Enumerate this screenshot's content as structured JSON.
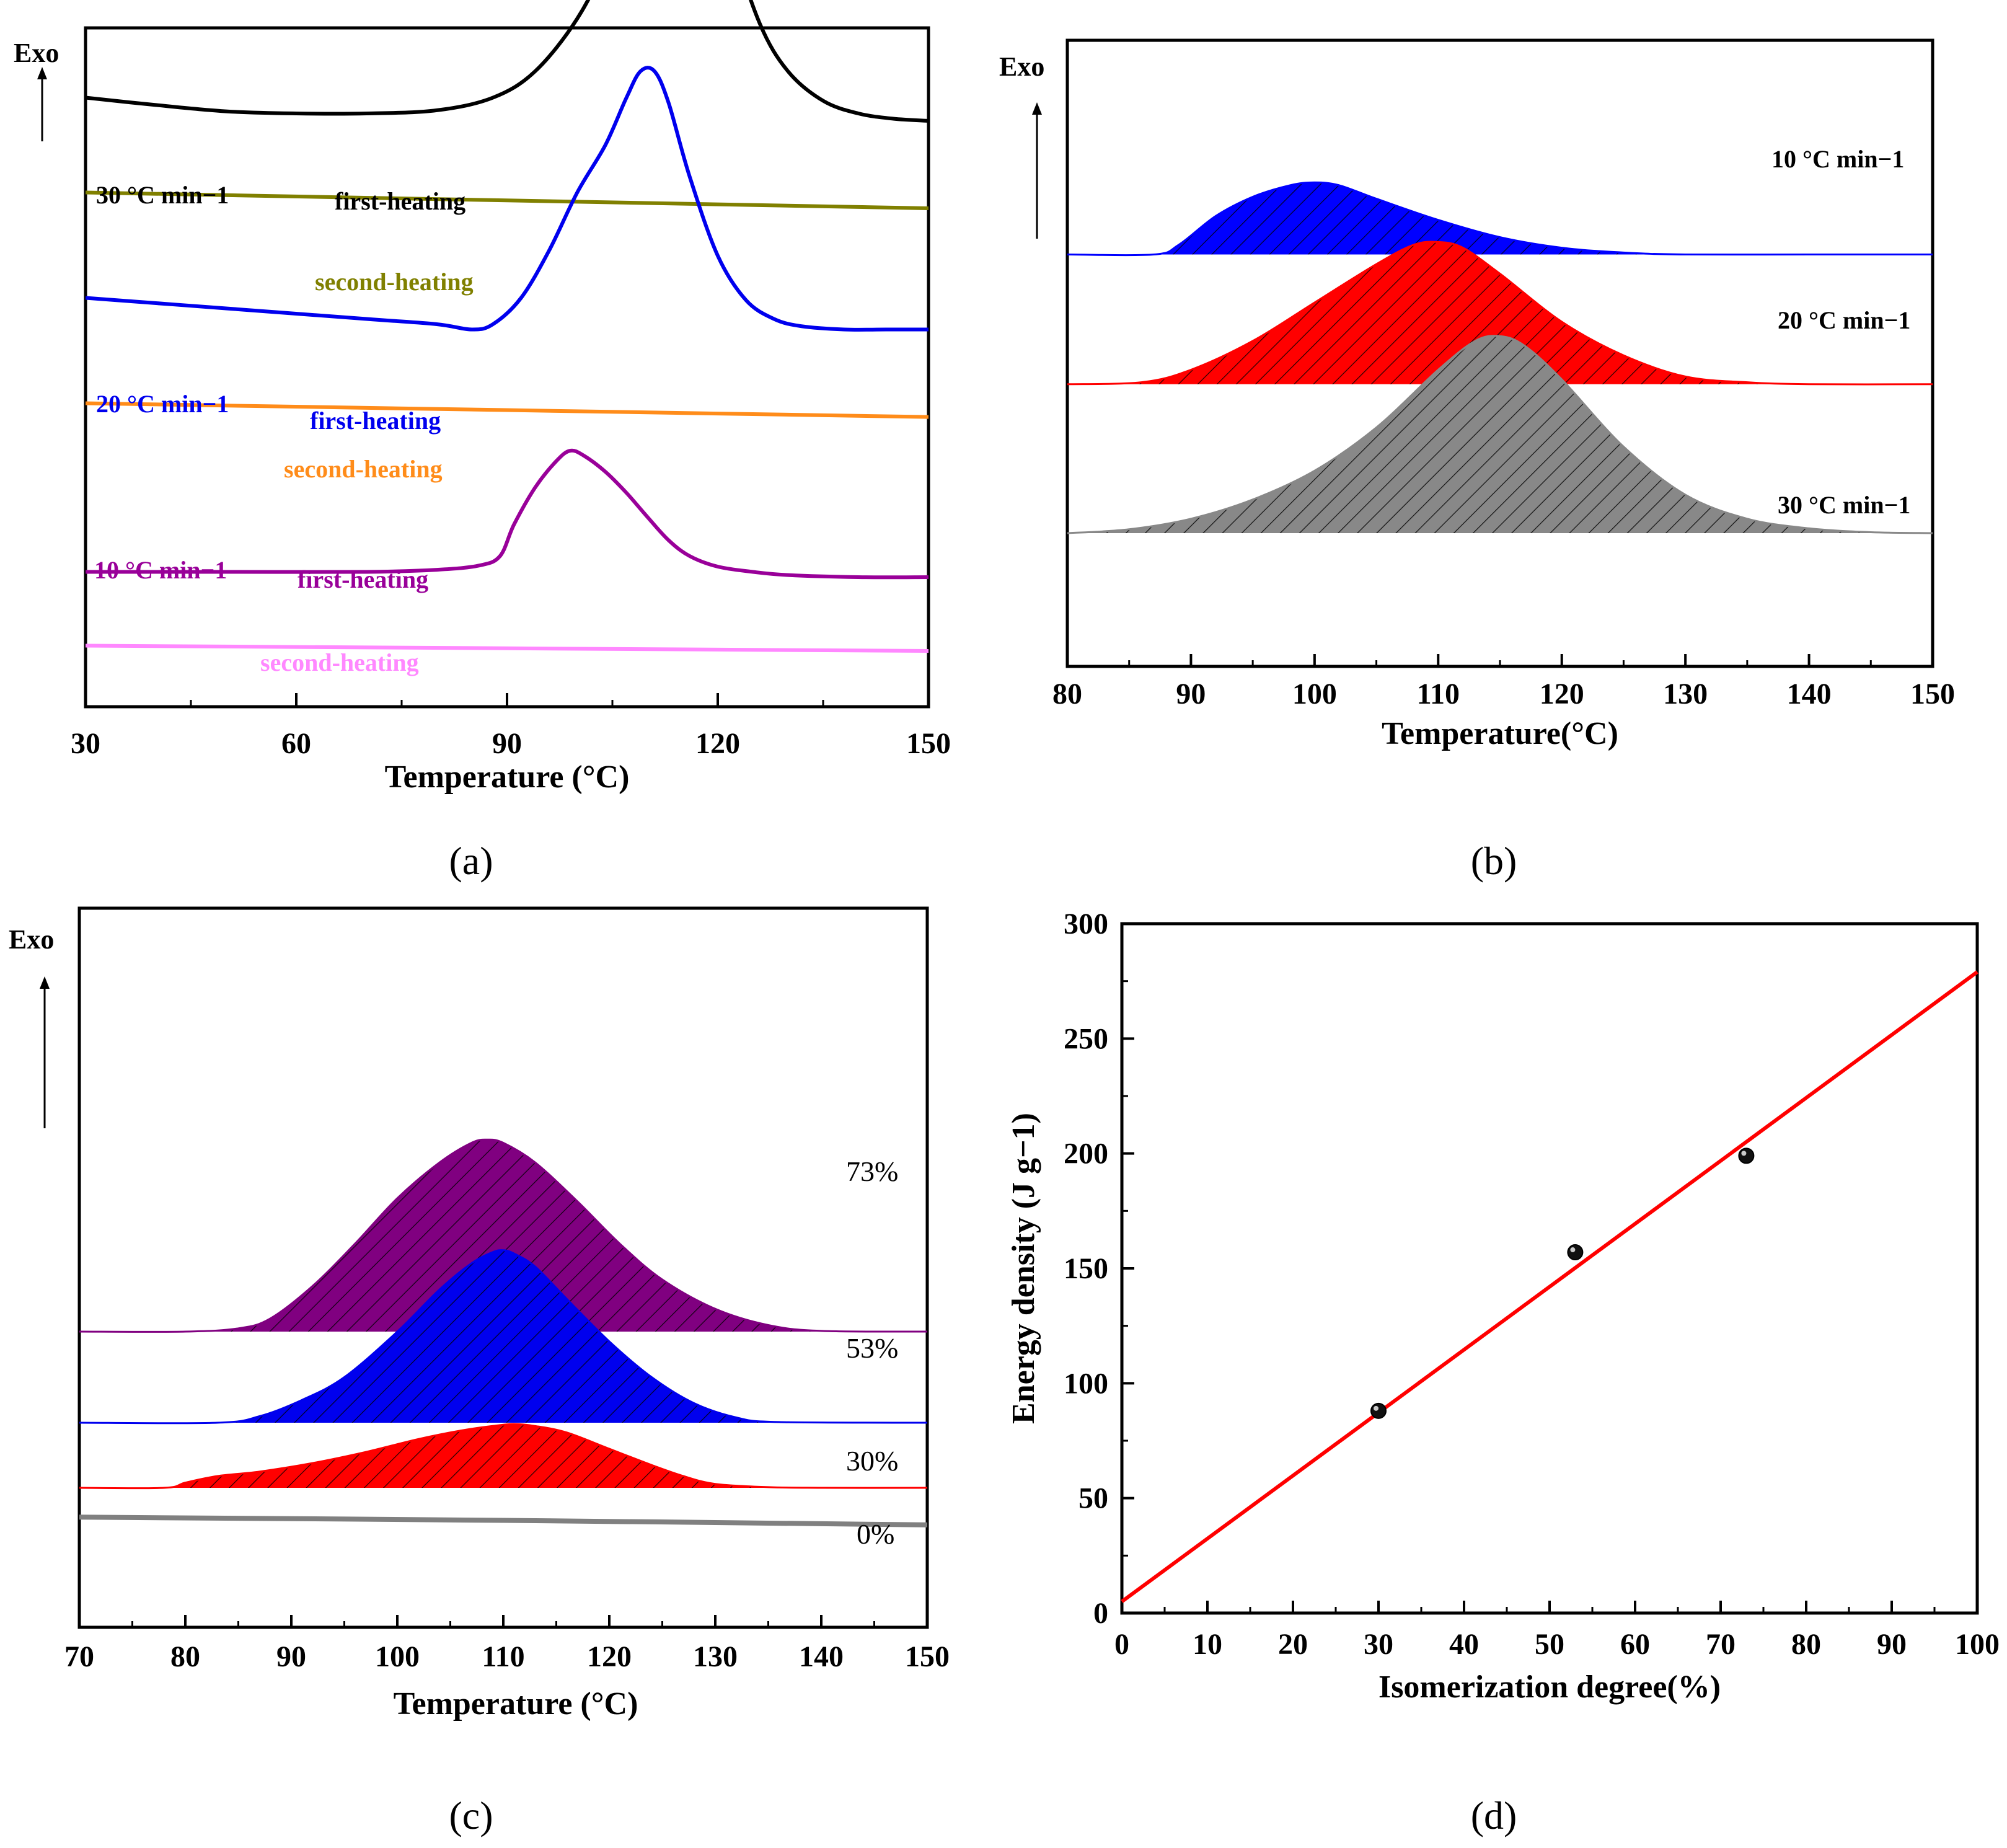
{
  "chart_data": [
    {
      "panel": "(a)",
      "type": "line",
      "xlabel": "Temperature (°C)",
      "ylabel": "Exo",
      "xlim": [
        30,
        150
      ],
      "xticks": [
        "30",
        "60",
        "90",
        "120",
        "150"
      ],
      "series": [
        {
          "name": "first-heating",
          "rate_label": "30 °C min−1",
          "color": "#000000",
          "offset": 5.0,
          "x": [
            30,
            40,
            50,
            60,
            70,
            80,
            88,
            94,
            100,
            104,
            108,
            110,
            112,
            114,
            116,
            118,
            120,
            122,
            126,
            130,
            135,
            140,
            145,
            150
          ],
          "y": [
            0.25,
            0.18,
            0.12,
            0.1,
            0.1,
            0.13,
            0.25,
            0.5,
            1.0,
            1.55,
            2.4,
            2.9,
            3.4,
            3.7,
            3.55,
            3.05,
            2.4,
            1.75,
            0.95,
            0.5,
            0.22,
            0.1,
            0.05,
            0.03
          ]
        },
        {
          "name": "second-heating",
          "color": "#808000",
          "offset": 4.35,
          "x": [
            30,
            150
          ],
          "y": [
            0.0,
            -0.15
          ]
        },
        {
          "name": "first-heating",
          "rate_label": "20 °C min−1",
          "color": "#0000ee",
          "offset": 3.05,
          "x": [
            30,
            50,
            70,
            80,
            85,
            88,
            92,
            96,
            100,
            104,
            107,
            109,
            111,
            113,
            116,
            120,
            124,
            128,
            132,
            138,
            144,
            150
          ],
          "y": [
            0.3,
            0.2,
            0.1,
            0.05,
            0.0,
            0.05,
            0.3,
            0.75,
            1.3,
            1.75,
            2.2,
            2.45,
            2.45,
            2.15,
            1.45,
            0.7,
            0.28,
            0.1,
            0.03,
            0.0,
            0.0,
            0.0
          ]
        },
        {
          "name": "second-heating",
          "color": "#ff8c1a",
          "offset": 2.35,
          "x": [
            30,
            150
          ],
          "y": [
            0.0,
            -0.13
          ]
        },
        {
          "name": "first-heating",
          "rate_label": "10 °C min−1",
          "color": "#990099",
          "offset": 0.75,
          "x": [
            30,
            50,
            70,
            80,
            86,
            89,
            91,
            94,
            97,
            99,
            101,
            104,
            107,
            110,
            113,
            116,
            120,
            125,
            130,
            140,
            150
          ],
          "y": [
            0.0,
            0.0,
            0.0,
            0.02,
            0.06,
            0.15,
            0.45,
            0.8,
            1.05,
            1.15,
            1.1,
            0.95,
            0.75,
            0.52,
            0.3,
            0.15,
            0.05,
            0.0,
            -0.03,
            -0.05,
            -0.05
          ]
        },
        {
          "name": "second-heating",
          "color": "#ff88ff",
          "offset": 0.05,
          "x": [
            30,
            150
          ],
          "y": [
            0.0,
            -0.05
          ]
        }
      ]
    },
    {
      "panel": "(b)",
      "type": "area",
      "xlabel": "Temperature(°C)",
      "ylabel": "Exo",
      "xlim": [
        80,
        150
      ],
      "xticks": [
        "80",
        "90",
        "100",
        "110",
        "120",
        "130",
        "140",
        "150"
      ],
      "series": [
        {
          "name": "10 °C min−1",
          "color": "#0000ff",
          "offset": 2.9,
          "x": [
            80,
            87,
            89,
            92,
            95,
            98,
            100,
            102,
            105,
            110,
            115,
            120,
            125,
            130,
            140,
            150
          ],
          "y": [
            0,
            0,
            0.1,
            0.4,
            0.6,
            0.72,
            0.75,
            0.72,
            0.58,
            0.36,
            0.18,
            0.07,
            0.02,
            0,
            0,
            0
          ]
        },
        {
          "name": "20 °C min−1",
          "color": "#ff0000",
          "offset": 1.55,
          "x": [
            80,
            86,
            90,
            95,
            100,
            105,
            108,
            110,
            112,
            115,
            120,
            125,
            130,
            135,
            140,
            150
          ],
          "y": [
            0,
            0.02,
            0.15,
            0.45,
            0.85,
            1.25,
            1.45,
            1.48,
            1.42,
            1.15,
            0.65,
            0.3,
            0.08,
            0.02,
            0,
            0
          ]
        },
        {
          "name": "30 °C min−1",
          "color": "#888888",
          "offset": 0.0,
          "x": [
            80,
            85,
            90,
            95,
            100,
            105,
            110,
            113,
            115,
            117,
            120,
            125,
            130,
            135,
            140,
            145,
            150
          ],
          "y": [
            0,
            0.04,
            0.15,
            0.35,
            0.65,
            1.1,
            1.7,
            2.0,
            2.05,
            1.95,
            1.6,
            0.9,
            0.4,
            0.15,
            0.05,
            0.01,
            0
          ]
        }
      ]
    },
    {
      "panel": "(c)",
      "type": "area",
      "xlabel": "Temperature (°C)",
      "ylabel": "Exo",
      "xlim": [
        70,
        150
      ],
      "xticks": [
        "70",
        "80",
        "90",
        "100",
        "110",
        "120",
        "130",
        "140",
        "150"
      ],
      "series": [
        {
          "name": "73%",
          "color": "#800080",
          "offset": 3.4,
          "x": [
            70,
            80,
            85,
            88,
            92,
            96,
            100,
            104,
            107,
            108.5,
            110,
            113,
            117,
            121,
            125,
            130,
            135,
            140,
            150
          ],
          "y": [
            0,
            0,
            0.05,
            0.2,
            0.7,
            1.35,
            2.05,
            2.6,
            2.9,
            2.95,
            2.9,
            2.6,
            2.0,
            1.35,
            0.8,
            0.35,
            0.1,
            0.01,
            0
          ]
        },
        {
          "name": "53%",
          "color": "#0000ee",
          "offset": 2.0,
          "x": [
            70,
            83,
            87,
            91,
            95,
            100,
            104,
            107,
            109,
            110,
            111,
            113,
            116,
            120,
            124,
            128,
            132,
            136,
            150
          ],
          "y": [
            0,
            0,
            0.1,
            0.35,
            0.7,
            1.4,
            2.05,
            2.45,
            2.62,
            2.65,
            2.6,
            2.4,
            1.9,
            1.25,
            0.7,
            0.3,
            0.08,
            0.01,
            0
          ]
        },
        {
          "name": "30%",
          "color": "#ff0000",
          "offset": 1.0,
          "x": [
            70,
            78,
            80,
            83,
            87,
            92,
            97,
            102,
            106,
            109,
            111,
            113,
            116,
            120,
            124,
            127,
            130,
            135,
            140,
            150
          ],
          "y": [
            0,
            0,
            0.08,
            0.18,
            0.25,
            0.38,
            0.55,
            0.75,
            0.88,
            0.95,
            0.98,
            0.95,
            0.85,
            0.6,
            0.35,
            0.18,
            0.06,
            0.01,
            0,
            0
          ]
        },
        {
          "name": "0%",
          "color": "#808080",
          "offset": 0.55,
          "x": [
            70,
            110,
            150
          ],
          "y": [
            0,
            -0.05,
            -0.12
          ]
        }
      ]
    },
    {
      "panel": "(d)",
      "type": "scatter",
      "xlabel": "Isomerization degree(%)",
      "ylabel": "Energy density (J g−1)",
      "xlim": [
        0,
        100
      ],
      "ylim": [
        0,
        300
      ],
      "xticks": [
        "0",
        "10",
        "20",
        "30",
        "40",
        "50",
        "60",
        "70",
        "80",
        "90",
        "100"
      ],
      "yticks": [
        "0",
        "50",
        "100",
        "150",
        "200",
        "250",
        "300"
      ],
      "points": {
        "x": [
          30,
          53,
          73
        ],
        "y": [
          88,
          157,
          199
        ]
      },
      "fit_line": {
        "x": [
          0,
          100
        ],
        "y": [
          5,
          279
        ],
        "color": "#ff0000"
      }
    }
  ]
}
